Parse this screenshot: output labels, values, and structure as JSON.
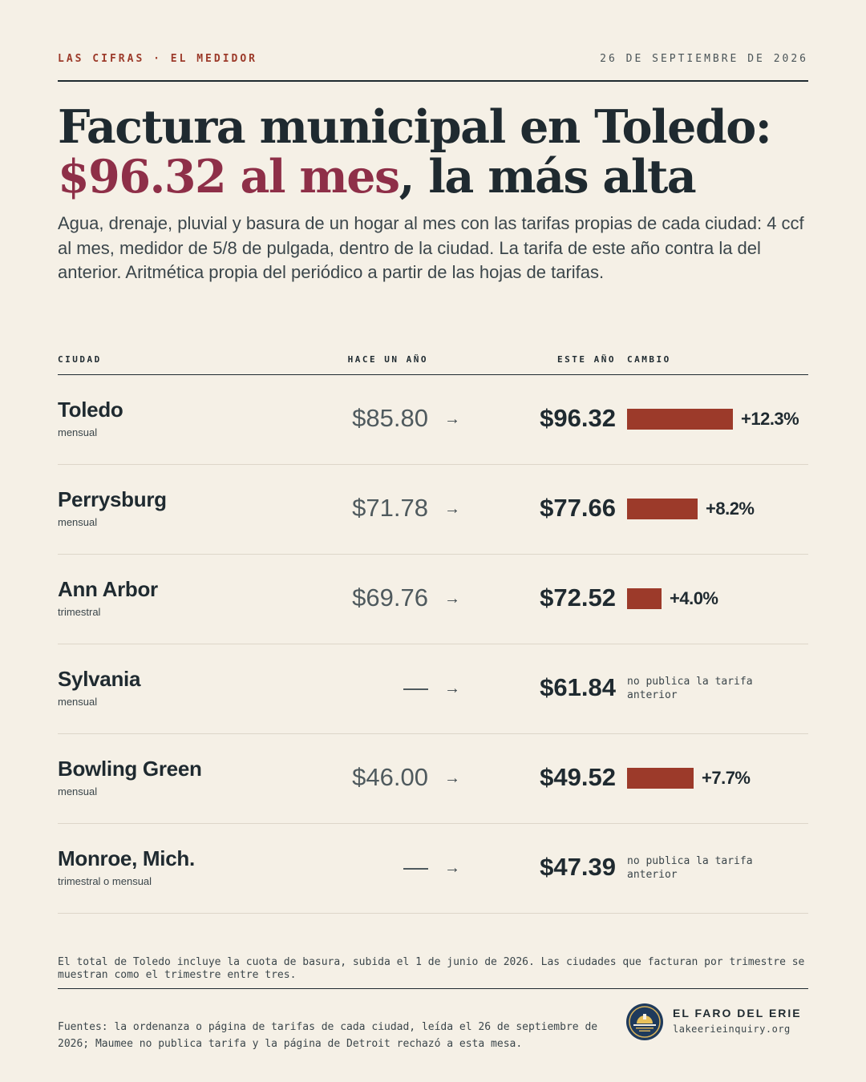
{
  "header": {
    "kicker": "LAS CIFRAS · EL MEDIDOR",
    "date": "26 DE SEPTIEMBRE DE 2026"
  },
  "headline": {
    "line1": "Factura municipal en Toledo:",
    "highlight": "$96.32 al mes",
    "rest": ", la más alta"
  },
  "dek": "Agua, drenaje, pluvial y basura de un hogar al mes con las tarifas propias de cada ciudad: 4 ccf al mes, medidor de 5/8 de pulgada, dentro de la ciudad. La tarifa de este año contra la del anterior. Aritmética propia del periódico a partir de las hojas de tarifas.",
  "table": {
    "headers": {
      "city": "CIUDAD",
      "prev": "HACE UN AÑO",
      "curr": "ESTE AÑO",
      "change": "CAMBIO"
    },
    "arrow": "→",
    "rows": [
      {
        "city": "Toledo",
        "freq": "mensual",
        "prev": "$85.80",
        "curr": "$96.32",
        "change": "+12.3%",
        "pct": 12.3
      },
      {
        "city": "Perrysburg",
        "freq": "mensual",
        "prev": "$71.78",
        "curr": "$77.66",
        "change": "+8.2%",
        "pct": 8.2
      },
      {
        "city": "Ann Arbor",
        "freq": "trimestral",
        "prev": "$69.76",
        "curr": "$72.52",
        "change": "+4.0%",
        "pct": 4.0
      },
      {
        "city": "Sylvania",
        "freq": "mensual",
        "prev": "—",
        "curr": "$61.84",
        "note": "no publica la tarifa anterior"
      },
      {
        "city": "Bowling Green",
        "freq": "mensual",
        "prev": "$46.00",
        "curr": "$49.52",
        "change": "+7.7%",
        "pct": 7.7
      },
      {
        "city": "Monroe, Mich.",
        "freq": "trimestral o mensual",
        "prev": "—",
        "curr": "$47.39",
        "note": "no publica la tarifa anterior"
      }
    ]
  },
  "footnote": "El total de Toledo incluye la cuota de basura, subida el 1 de junio de 2026. Las ciudades que facturan por trimestre se muestran como el trimestre entre tres.",
  "sources": "Fuentes: la ordenanza o página de tarifas de cada ciudad, leída el 26 de septiembre de 2026; Maumee no publica tarifa y la página de Detroit rechazó a esta mesa.",
  "brand": {
    "name": "EL FARO DEL ERIE",
    "site": "lakeerieinquiry.org"
  },
  "colors": {
    "accent": "#9c3a2a",
    "headline_highlight": "#8e2f48",
    "ink": "#1f2a30",
    "paper": "#f5f0e6"
  }
}
